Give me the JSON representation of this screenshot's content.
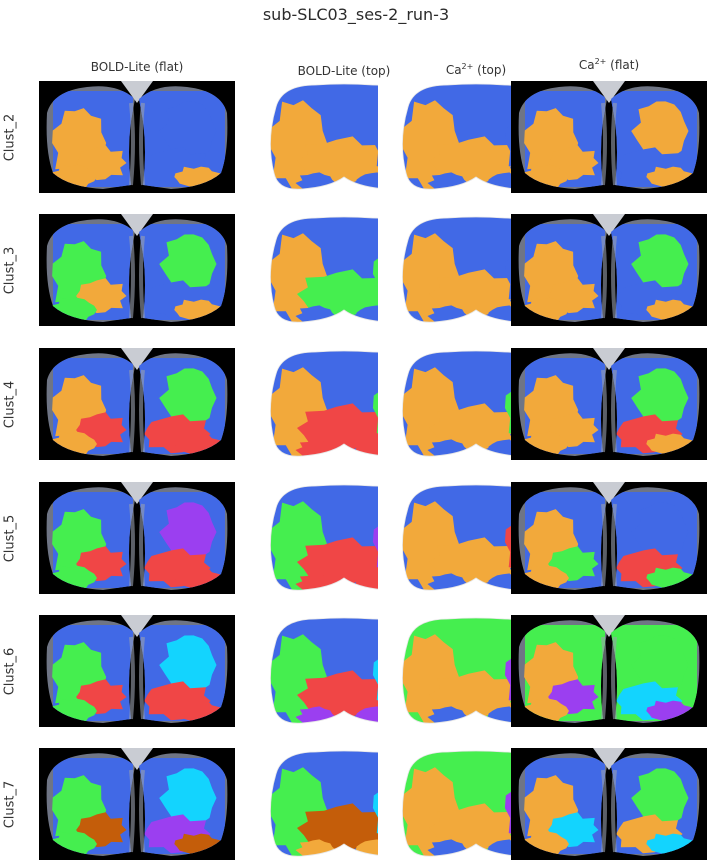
{
  "figure": {
    "title": "sub-SLC03_ses-2_run-3"
  },
  "columns": [
    {
      "label": "BOLD-Lite (flat)",
      "sup": "",
      "suffix": "",
      "view": "flat"
    },
    {
      "label": "BOLD-Lite (top)",
      "sup": "",
      "suffix": "",
      "view": "top"
    },
    {
      "label": "Ca",
      "sup": "2+",
      "suffix": " (top)",
      "view": "top"
    },
    {
      "label": "Ca",
      "sup": "2+",
      "suffix": " (flat)",
      "view": "flat"
    }
  ],
  "rows": [
    {
      "label": "Clust_2",
      "panels": [
        [
          "blue",
          "orange",
          "orange",
          "blue",
          "blue"
        ],
        [
          "blue",
          "orange",
          "orange",
          "blue",
          "blue"
        ],
        [
          "blue",
          "orange",
          "orange",
          "blue",
          "blue"
        ],
        [
          "blue",
          "orange",
          "orange",
          "blue",
          "orange"
        ]
      ]
    },
    {
      "label": "Clust_3",
      "panels": [
        [
          "blue",
          "green",
          "orange",
          "blue",
          "green"
        ],
        [
          "blue",
          "orange",
          "green",
          "blue",
          "green"
        ],
        [
          "blue",
          "orange",
          "orange",
          "blue",
          "blue"
        ],
        [
          "blue",
          "orange",
          "orange",
          "blue",
          "green"
        ]
      ]
    },
    {
      "label": "Clust_4",
      "panels": [
        [
          "blue",
          "orange",
          "red",
          "red",
          "green"
        ],
        [
          "blue",
          "orange",
          "red",
          "red",
          "green"
        ],
        [
          "blue",
          "orange",
          "orange",
          "blue",
          "green"
        ],
        [
          "blue",
          "orange",
          "orange",
          "red",
          "green"
        ]
      ]
    },
    {
      "label": "Clust_5",
      "panels": [
        [
          "blue",
          "green",
          "red",
          "red",
          "purple"
        ],
        [
          "blue",
          "green",
          "red",
          "red",
          "purple"
        ],
        [
          "blue",
          "orange",
          "orange",
          "blue",
          "red"
        ],
        [
          "blue",
          "orange",
          "green",
          "red",
          "blue"
        ]
      ]
    },
    {
      "label": "Clust_6",
      "panels": [
        [
          "blue",
          "green",
          "red",
          "red",
          "cyan"
        ],
        [
          "blue",
          "green",
          "red",
          "purple",
          "cyan"
        ],
        [
          "green",
          "orange",
          "orange",
          "blue",
          "purple"
        ],
        [
          "green",
          "orange",
          "purple",
          "cyan",
          "green"
        ]
      ]
    },
    {
      "label": "Clust_7",
      "panels": [
        [
          "blue",
          "green",
          "brown",
          "purple",
          "cyan"
        ],
        [
          "blue",
          "green",
          "brown",
          "orange",
          "cyan"
        ],
        [
          "green",
          "orange",
          "orange",
          "blue",
          "purple"
        ],
        [
          "blue",
          "orange",
          "cyan",
          "orange",
          "green"
        ]
      ]
    }
  ],
  "palette": {
    "blue": "#4169e6",
    "orange": "#f2a93b",
    "green": "#45ee4f",
    "red": "#f04646",
    "purple": "#9b3ff0",
    "cyan": "#13d4fe",
    "brown": "#c45d0a",
    "background": "#000000",
    "cortex_gray": "#6f7585"
  }
}
